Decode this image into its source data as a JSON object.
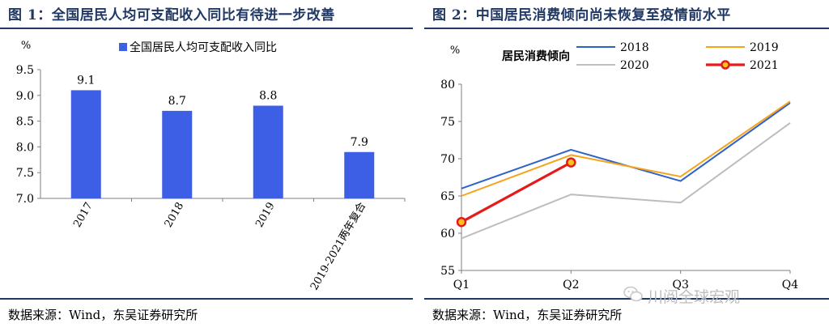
{
  "left": {
    "figure_title": "图 1：全国居民人均可支配收入同比有待进一步改善",
    "source": "数据来源：Wind，东吴证券研究所"
  },
  "right": {
    "figure_title": "图 2：中国居民消费倾向尚未恢复至疫情前水平",
    "source": "数据来源：Wind，东吴证券研究所"
  },
  "watermark": "川阅全球宏观",
  "colors": {
    "title": "#1f3864",
    "bar": "#3d5fe6",
    "s2018": "#2e62c8",
    "s2019": "#f5a31a",
    "s2020": "#bdbdbd",
    "s2021": "#e51b1b"
  },
  "chart_data": [
    {
      "type": "bar",
      "title": "",
      "unit_label": "%",
      "legend": [
        "全国居民人均可支配收入同比"
      ],
      "legend_position": "top",
      "categories": [
        "2017",
        "2018",
        "2019",
        "2019-2021两年复合"
      ],
      "series": [
        {
          "name": "全国居民人均可支配收入同比",
          "values": [
            9.1,
            8.7,
            8.8,
            7.9
          ]
        }
      ],
      "data_labels": [
        "9.1",
        "8.7",
        "8.8",
        "7.9"
      ],
      "ylim": [
        7.0,
        9.5
      ],
      "yticks": [
        "7.0",
        "7.5",
        "8.0",
        "8.5",
        "9.0",
        "9.5"
      ],
      "grid": false
    },
    {
      "type": "line",
      "title": "居民消费倾向",
      "unit_label": "%",
      "categories": [
        "Q1",
        "Q2",
        "Q3",
        "Q4"
      ],
      "series": [
        {
          "name": "2018",
          "values": [
            66,
            71.2,
            67,
            77.5
          ]
        },
        {
          "name": "2019",
          "values": [
            65,
            70.5,
            67.6,
            77.7
          ]
        },
        {
          "name": "2020",
          "values": [
            59.3,
            65.2,
            64.1,
            74.8
          ]
        },
        {
          "name": "2021",
          "values": [
            61.5,
            69.5,
            null,
            null
          ]
        }
      ],
      "ylim": [
        55,
        80
      ],
      "yticks": [
        "55",
        "60",
        "65",
        "70",
        "75",
        "80"
      ],
      "legend_position": "top-right",
      "grid": false
    }
  ]
}
